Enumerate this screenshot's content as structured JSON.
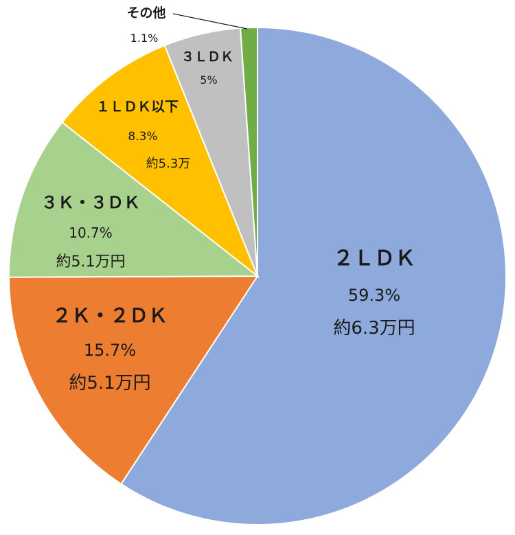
{
  "chart_data": {
    "type": "pie",
    "categories": [
      "2LDK",
      "2K・2DK",
      "3K・3DK",
      "1LDK以下",
      "3LDK",
      "その他"
    ],
    "values": [
      59.3,
      15.7,
      10.7,
      8.3,
      5.0,
      1.1
    ],
    "slices": [
      {
        "name": "２ＬＤＫ",
        "pct": "59.3%",
        "rent": "約6.3万円",
        "color": "#8EA9DB"
      },
      {
        "name": "２Ｋ・２ＤＫ",
        "pct": "15.7%",
        "rent": "約5.1万円",
        "color": "#ED7D31"
      },
      {
        "name": "３Ｋ・３ＤＫ",
        "pct": "10.7%",
        "rent": "約5.1万円",
        "color": "#A9D18E"
      },
      {
        "name": "１ＬＤＫ以下",
        "pct": "8.3%",
        "rent": "約5.3万",
        "color": "#FFC000"
      },
      {
        "name": "３ＬＤＫ",
        "pct": "5%",
        "rent": "",
        "color": "#C0C0C0"
      },
      {
        "name": "その他",
        "pct": "1.1%",
        "rent": "",
        "color": "#70AD47"
      }
    ],
    "start": "12 o'clock",
    "direction": "clockwise",
    "legend": "none"
  }
}
